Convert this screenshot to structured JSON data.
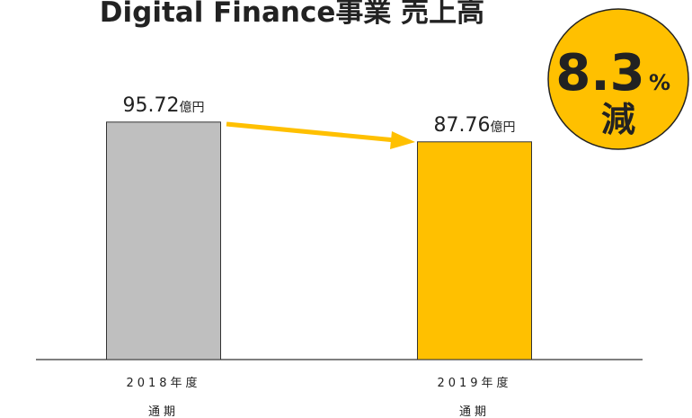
{
  "chart_data": {
    "type": "bar",
    "title": "Digital Finance事業 売上高",
    "categories": [
      [
        "2018年度",
        "通期"
      ],
      [
        "2019年度",
        "通期"
      ]
    ],
    "values": [
      95.72,
      87.76
    ],
    "value_labels": [
      "95.72億円",
      "87.76億円"
    ],
    "colors": [
      "#bfbfbf",
      "#ffc000"
    ],
    "ylim": [
      0,
      100
    ],
    "annotation": {
      "number": "8.3",
      "unit": "%",
      "suffix": "減"
    }
  }
}
